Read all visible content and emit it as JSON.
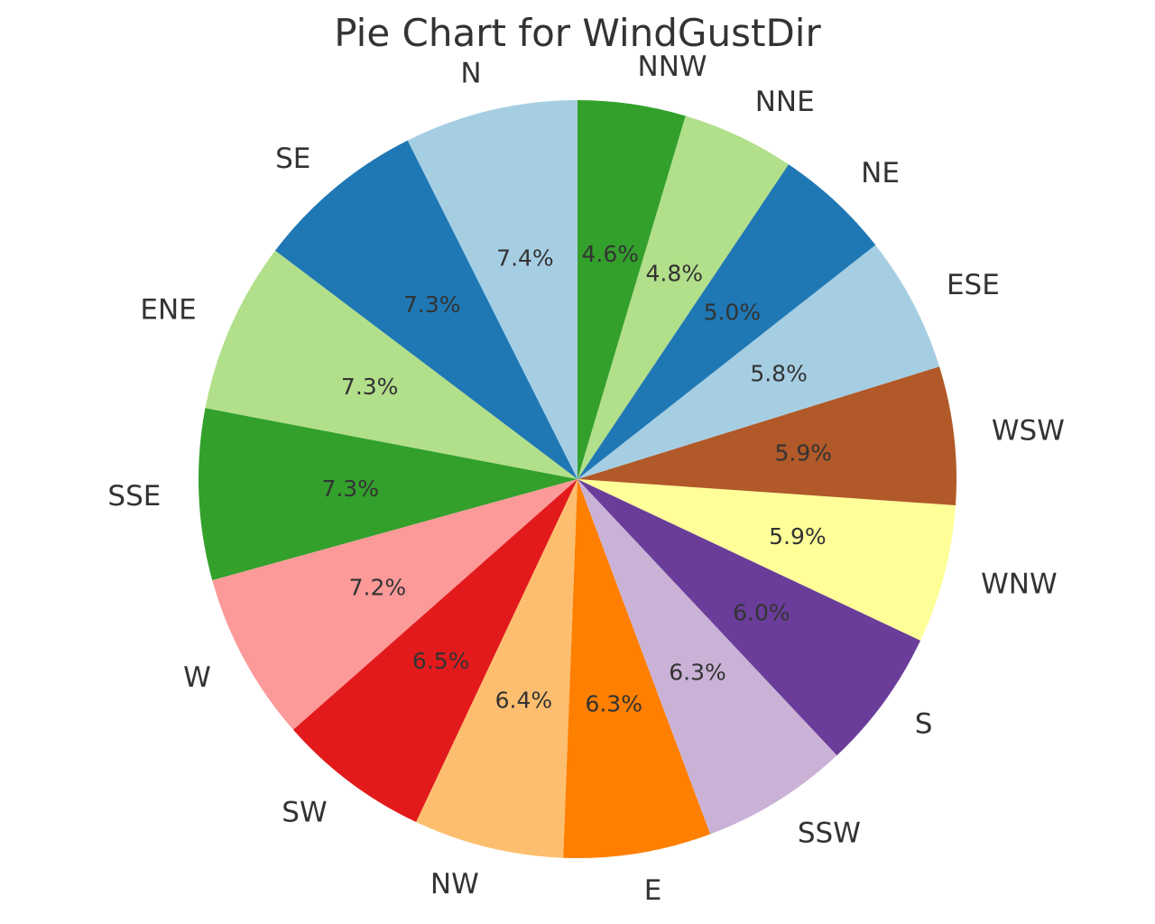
{
  "chart_data": {
    "type": "pie",
    "title": "Pie Chart for WindGustDir",
    "start_angle_deg": 90,
    "direction": "counterclockwise",
    "categories": [
      "N",
      "SE",
      "ENE",
      "SSE",
      "W",
      "SW",
      "NW",
      "E",
      "SSW",
      "S",
      "WNW",
      "WSW",
      "ESE",
      "NE",
      "NNE",
      "NNW"
    ],
    "values": [
      7.4,
      7.3,
      7.3,
      7.3,
      7.2,
      6.5,
      6.4,
      6.3,
      6.3,
      6.0,
      5.9,
      5.9,
      5.8,
      5.0,
      4.8,
      4.6
    ],
    "percent_labels": [
      "7.4%",
      "7.3%",
      "7.3%",
      "7.3%",
      "7.2%",
      "6.5%",
      "6.4%",
      "6.3%",
      "6.3%",
      "6.0%",
      "5.9%",
      "5.9%",
      "5.8%",
      "5.0%",
      "4.8%",
      "4.6%"
    ],
    "colors": [
      "#a6cee3",
      "#1f78b4",
      "#b2df8a",
      "#33a02c",
      "#fb9a99",
      "#e31a1c",
      "#fdbf6f",
      "#ff7f00",
      "#cab2d6",
      "#6a3d9a",
      "#ffff99",
      "#b15928",
      "#a6cee3",
      "#1f78b4",
      "#b2df8a",
      "#33a02c"
    ],
    "legend": "none"
  }
}
